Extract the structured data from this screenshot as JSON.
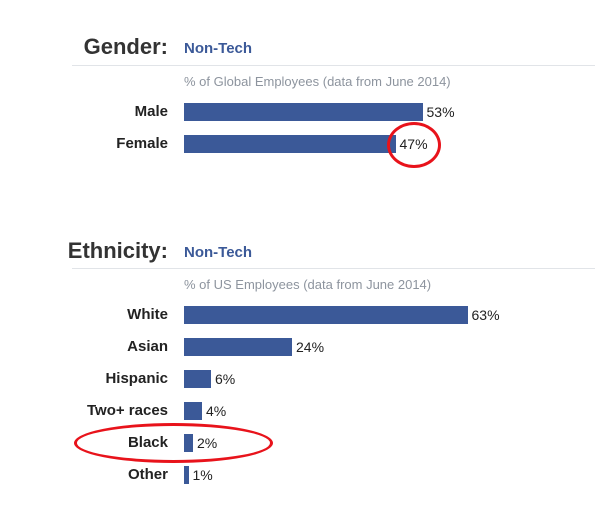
{
  "gender": {
    "title": "Gender:",
    "subtitle": "Non-Tech",
    "note": "% of Global Employees (data from June 2014)"
  },
  "ethnicity": {
    "title": "Ethnicity:",
    "subtitle": "Non-Tech",
    "note": "% of US Employees (data from June 2014)"
  },
  "colors": {
    "bar": "#3b5998",
    "highlight": "#e8131b"
  },
  "chart_data": [
    {
      "type": "bar",
      "orientation": "horizontal",
      "title": "Gender:",
      "subtitle": "Non-Tech",
      "categories": [
        "Male",
        "Female"
      ],
      "values": [
        53,
        47
      ],
      "value_labels": [
        "53%",
        "47%"
      ],
      "xlim": [
        0,
        100
      ],
      "grid": false,
      "highlighted": [
        "Female"
      ]
    },
    {
      "type": "bar",
      "orientation": "horizontal",
      "title": "Ethnicity:",
      "subtitle": "Non-Tech",
      "categories": [
        "White",
        "Asian",
        "Hispanic",
        "Two+ races",
        "Black",
        "Other"
      ],
      "values": [
        63,
        24,
        6,
        4,
        2,
        1
      ],
      "value_labels": [
        "63%",
        "24%",
        "6%",
        "4%",
        "2%",
        "1%"
      ],
      "xlim": [
        0,
        100
      ],
      "grid": false,
      "highlighted": [
        "Black"
      ]
    }
  ]
}
